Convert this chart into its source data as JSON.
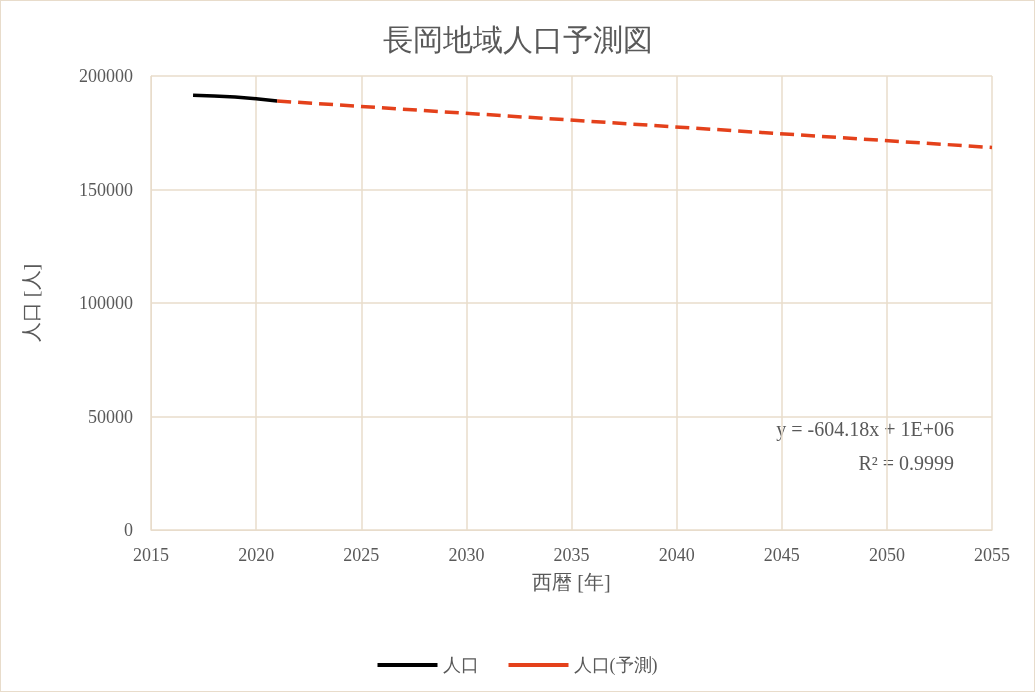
{
  "chart_data": {
    "type": "line",
    "title": "長岡地域人口予測図",
    "xlabel": "西暦 [年]",
    "ylabel": "人口 [人]",
    "xlim": [
      2015,
      2055
    ],
    "xticks": [
      2015,
      2020,
      2025,
      2030,
      2035,
      2040,
      2045,
      2050,
      2055
    ],
    "ylim": [
      0,
      200000
    ],
    "yticks": [
      0,
      50000,
      100000,
      150000,
      200000
    ],
    "grid": true,
    "legend": "bottom",
    "marker": "none",
    "series": [
      {
        "name": "人口",
        "color": "#000000",
        "line_style": "solid",
        "x": [
          2017,
          2018,
          2019,
          2020,
          2021
        ],
        "values": [
          191500,
          191200,
          190800,
          190000,
          189000
        ]
      },
      {
        "name": "人口(予測)",
        "color": "#e4411b",
        "line_style": "dashed",
        "x": [
          2021,
          2055
        ],
        "values": [
          189000,
          168500
        ]
      }
    ],
    "annotations": [
      "y = -604.18x + 1E+06",
      "R² = 0.9999"
    ]
  }
}
